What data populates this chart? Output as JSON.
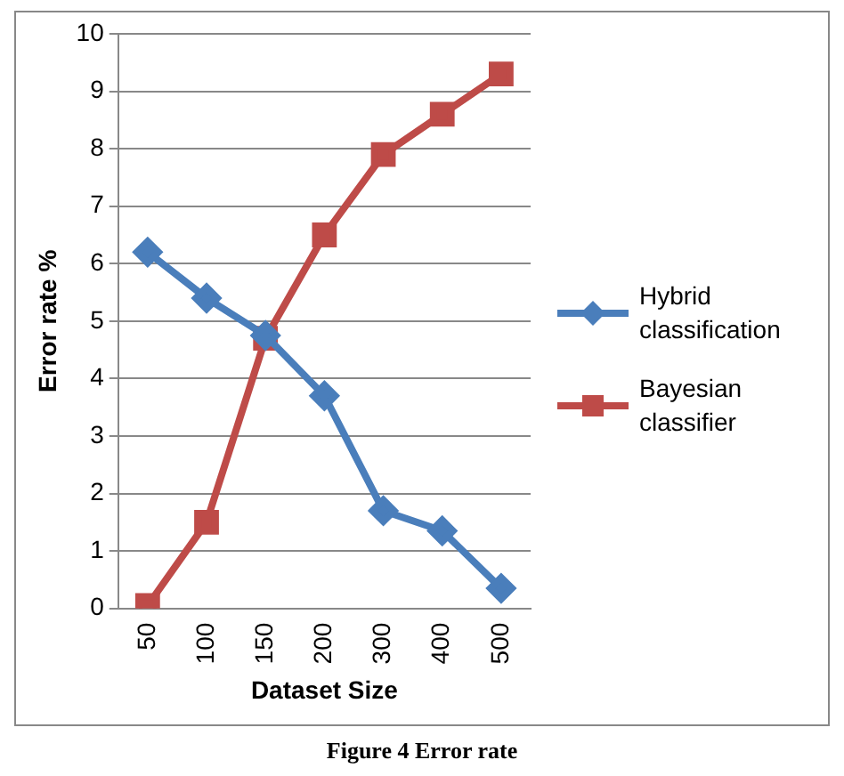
{
  "chart_data": {
    "type": "line",
    "xlabel": "Dataset Size",
    "ylabel": "Error rate %",
    "categories": [
      "50",
      "100",
      "150",
      "200",
      "300",
      "400",
      "500"
    ],
    "series": [
      {
        "name": "Hybrid classification",
        "color": "#4a7ebb",
        "marker": "diamond",
        "values": [
          6.2,
          5.4,
          4.75,
          3.7,
          1.7,
          1.35,
          0.35
        ]
      },
      {
        "name": "Bayesian classifier",
        "color": "#be4b48",
        "marker": "square",
        "values": [
          0.05,
          1.5,
          4.7,
          6.5,
          7.9,
          8.6,
          9.3
        ]
      }
    ],
    "ylim": [
      0,
      10
    ],
    "yticks": [
      0,
      1,
      2,
      3,
      4,
      5,
      6,
      7,
      8,
      9,
      10
    ],
    "grid": "y",
    "legend": "right",
    "annotations": [
      "Figure 4 Error rate"
    ]
  }
}
